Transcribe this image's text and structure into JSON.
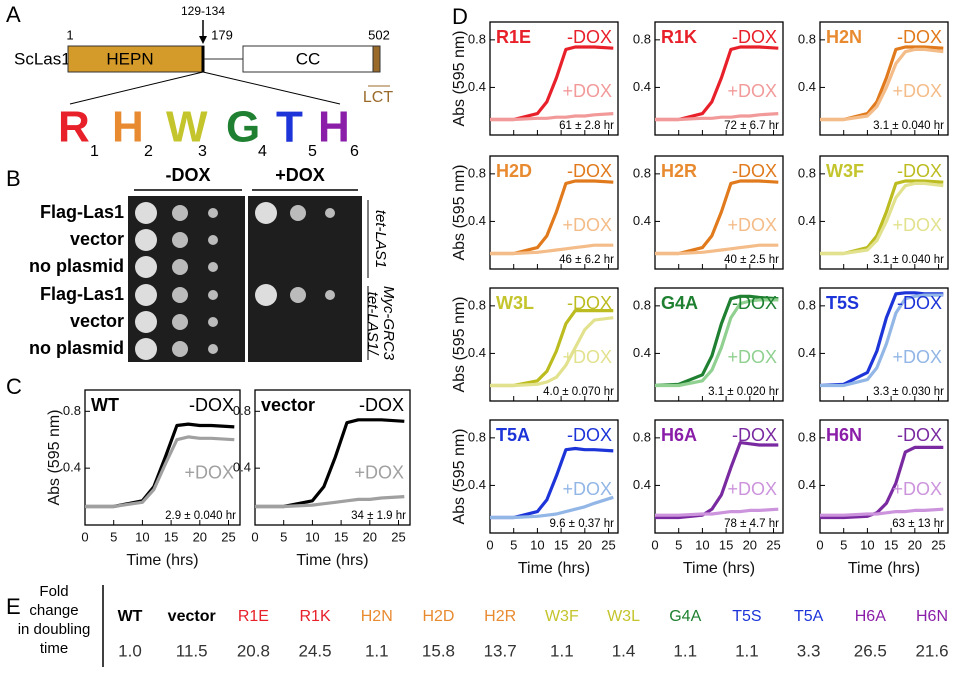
{
  "panel_a": {
    "label": "A",
    "protein": "ScLas1",
    "domains": [
      "HEPN",
      "CC"
    ],
    "motif_range": "129-134",
    "positions": [
      "1",
      "179",
      "502"
    ],
    "lct": "LCT",
    "motif": [
      {
        "letter": "R",
        "index": "1",
        "color": "#e8202a"
      },
      {
        "letter": "H",
        "index": "2",
        "color": "#e88a30"
      },
      {
        "letter": "W",
        "index": "3",
        "color": "#c4c42c"
      },
      {
        "letter": "G",
        "index": "4",
        "color": "#1e8030"
      },
      {
        "letter": "T",
        "index": "5",
        "color": "#1c34d8"
      },
      {
        "letter": "H",
        "index": "6",
        "color": "#8a1ea8"
      }
    ]
  },
  "panel_b": {
    "label": "B",
    "conditions": [
      "-DOX",
      "+DOX"
    ],
    "rows": [
      "Flag-Las1",
      "vector",
      "no plasmid",
      "Flag-Las1",
      "vector",
      "no plasmid"
    ],
    "strains": [
      [
        "tet-LAS1"
      ],
      [
        "tet-LAS1/",
        "Myc-GRC3"
      ]
    ]
  },
  "panel_c": {
    "label": "C",
    "x_label": "Time (hrs)",
    "y_label": "Abs (595 nm)",
    "x": [
      0,
      5,
      10,
      12,
      14,
      16,
      18,
      20,
      22,
      26
    ],
    "xlim": [
      0,
      27
    ],
    "xticks": [
      0,
      5,
      10,
      15,
      20,
      25
    ],
    "ylim": [
      0,
      0.95
    ],
    "yticks": [
      0.4,
      0.8
    ],
    "charts": [
      {
        "name": "WT",
        "color": "#000000",
        "annotation": "2.9 ± 0.040 hr",
        "series": [
          {
            "name": "-DOX",
            "color": "#000000",
            "values": [
              0.13,
              0.13,
              0.17,
              0.27,
              0.48,
              0.7,
              0.71,
              0.7,
              0.7,
              0.69
            ]
          },
          {
            "name": "+DOX",
            "color": "#a0a0a0",
            "values": [
              0.13,
              0.13,
              0.16,
              0.25,
              0.43,
              0.6,
              0.62,
              0.61,
              0.61,
              0.6
            ]
          }
        ]
      },
      {
        "name": "vector",
        "color": "#000000",
        "annotation": "34 ± 1.9 hr",
        "series": [
          {
            "name": "-DOX",
            "color": "#000000",
            "values": [
              0.13,
              0.13,
              0.17,
              0.27,
              0.48,
              0.72,
              0.74,
              0.74,
              0.74,
              0.73
            ]
          },
          {
            "name": "+DOX",
            "color": "#a0a0a0",
            "values": [
              0.13,
              0.13,
              0.14,
              0.15,
              0.16,
              0.17,
              0.18,
              0.18,
              0.19,
              0.2
            ]
          }
        ]
      }
    ]
  },
  "panel_d": {
    "label": "D",
    "x_label": "Time (hrs)",
    "y_label": "Abs (595 nm)",
    "x": [
      0,
      5,
      10,
      12,
      14,
      16,
      18,
      20,
      22,
      26
    ],
    "xlim": [
      0,
      27
    ],
    "xticks": [
      0,
      5,
      10,
      15,
      20,
      25
    ],
    "ylim": [
      0,
      0.95
    ],
    "yticks": [
      0.4,
      0.8
    ],
    "charts": [
      {
        "name": "R1E",
        "color": "#e8202a",
        "annotation": "61 ± 2.8 hr",
        "series": [
          {
            "name": "-DOX",
            "color": "#e8202a",
            "values": [
              0.13,
              0.13,
              0.18,
              0.28,
              0.48,
              0.72,
              0.74,
              0.74,
              0.74,
              0.73
            ]
          },
          {
            "name": "+DOX",
            "color": "#f29a9a",
            "values": [
              0.13,
              0.13,
              0.14,
              0.14,
              0.15,
              0.15,
              0.16,
              0.16,
              0.17,
              0.18
            ]
          }
        ]
      },
      {
        "name": "R1K",
        "color": "#e8202a",
        "annotation": "72 ± 6.7 hr",
        "series": [
          {
            "name": "-DOX",
            "color": "#e8202a",
            "values": [
              0.13,
              0.13,
              0.18,
              0.28,
              0.48,
              0.72,
              0.74,
              0.74,
              0.74,
              0.73
            ]
          },
          {
            "name": "+DOX",
            "color": "#f29a9a",
            "values": [
              0.13,
              0.13,
              0.14,
              0.14,
              0.15,
              0.15,
              0.16,
              0.16,
              0.17,
              0.18
            ]
          }
        ]
      },
      {
        "name": "H2N",
        "color": "#e88a30",
        "annotation": "3.1 ± 0.040 hr",
        "series": [
          {
            "name": "-DOX",
            "color": "#e07a1c",
            "values": [
              0.13,
              0.13,
              0.18,
              0.28,
              0.48,
              0.72,
              0.74,
              0.74,
              0.74,
              0.73
            ]
          },
          {
            "name": "+DOX",
            "color": "#f4bc88",
            "values": [
              0.13,
              0.13,
              0.16,
              0.24,
              0.4,
              0.6,
              0.7,
              0.72,
              0.72,
              0.7
            ]
          }
        ]
      },
      {
        "name": "H2D",
        "color": "#e88a30",
        "annotation": "46 ± 6.2 hr",
        "series": [
          {
            "name": "-DOX",
            "color": "#e07a1c",
            "values": [
              0.13,
              0.13,
              0.18,
              0.28,
              0.48,
              0.72,
              0.74,
              0.74,
              0.74,
              0.73
            ]
          },
          {
            "name": "+DOX",
            "color": "#f4bc88",
            "values": [
              0.13,
              0.13,
              0.14,
              0.15,
              0.16,
              0.17,
              0.18,
              0.19,
              0.2,
              0.2
            ]
          }
        ]
      },
      {
        "name": "H2R",
        "color": "#e88a30",
        "annotation": "40 ± 2.5 hr",
        "series": [
          {
            "name": "-DOX",
            "color": "#e07a1c",
            "values": [
              0.13,
              0.13,
              0.18,
              0.28,
              0.48,
              0.72,
              0.74,
              0.74,
              0.74,
              0.73
            ]
          },
          {
            "name": "+DOX",
            "color": "#f4bc88",
            "values": [
              0.13,
              0.13,
              0.14,
              0.15,
              0.16,
              0.17,
              0.18,
              0.19,
              0.2,
              0.2
            ]
          }
        ]
      },
      {
        "name": "W3F",
        "color": "#c4c42c",
        "annotation": "3.1 ± 0.040 hr",
        "series": [
          {
            "name": "-DOX",
            "color": "#bcbc20",
            "values": [
              0.13,
              0.13,
              0.18,
              0.28,
              0.48,
              0.72,
              0.74,
              0.74,
              0.74,
              0.73
            ]
          },
          {
            "name": "+DOX",
            "color": "#e2e28e",
            "values": [
              0.13,
              0.13,
              0.16,
              0.24,
              0.4,
              0.6,
              0.7,
              0.72,
              0.72,
              0.7
            ]
          }
        ]
      },
      {
        "name": "W3L",
        "color": "#c4c42c",
        "annotation": "4.0 ± 0.070 hr",
        "series": [
          {
            "name": "-DOX",
            "color": "#bcbc20",
            "values": [
              0.13,
              0.13,
              0.17,
              0.25,
              0.42,
              0.65,
              0.76,
              0.76,
              0.76,
              0.76
            ]
          },
          {
            "name": "+DOX",
            "color": "#e2e28e",
            "values": [
              0.13,
              0.13,
              0.14,
              0.16,
              0.2,
              0.3,
              0.45,
              0.6,
              0.68,
              0.7
            ]
          }
        ]
      },
      {
        "name": "G4A",
        "color": "#1e8030",
        "annotation": "3.1 ± 0.020 hr",
        "series": [
          {
            "name": "-DOX",
            "color": "#1e8030",
            "values": [
              0.13,
              0.14,
              0.22,
              0.38,
              0.65,
              0.86,
              0.88,
              0.88,
              0.87,
              0.86
            ]
          },
          {
            "name": "+DOX",
            "color": "#90d090",
            "values": [
              0.13,
              0.13,
              0.17,
              0.26,
              0.45,
              0.7,
              0.82,
              0.84,
              0.85,
              0.85
            ]
          }
        ]
      },
      {
        "name": "T5S",
        "color": "#1c34d8",
        "annotation": "3.3 ± 0.030 hr",
        "series": [
          {
            "name": "-DOX",
            "color": "#1c34d8",
            "values": [
              0.13,
              0.14,
              0.24,
              0.42,
              0.7,
              0.9,
              0.91,
              0.91,
              0.9,
              0.9
            ]
          },
          {
            "name": "+DOX",
            "color": "#92b6e6",
            "values": [
              0.13,
              0.13,
              0.18,
              0.28,
              0.48,
              0.74,
              0.86,
              0.88,
              0.89,
              0.89
            ]
          }
        ]
      },
      {
        "name": "T5A",
        "color": "#1c34d8",
        "annotation": "9.6 ± 0.37 hr",
        "series": [
          {
            "name": "-DOX",
            "color": "#1c34d8",
            "values": [
              0.13,
              0.13,
              0.18,
              0.28,
              0.48,
              0.7,
              0.71,
              0.7,
              0.7,
              0.69
            ]
          },
          {
            "name": "+DOX",
            "color": "#92b6e6",
            "values": [
              0.13,
              0.13,
              0.14,
              0.15,
              0.16,
              0.18,
              0.2,
              0.22,
              0.25,
              0.3
            ]
          }
        ]
      },
      {
        "name": "H6A",
        "color": "#8a1ea8",
        "annotation": "78 ± 4.7 hr",
        "series": [
          {
            "name": "-DOX",
            "color": "#7a2aa0",
            "values": [
              0.13,
              0.13,
              0.15,
              0.2,
              0.32,
              0.55,
              0.76,
              0.75,
              0.74,
              0.74
            ]
          },
          {
            "name": "+DOX",
            "color": "#cc94dc",
            "values": [
              0.15,
              0.15,
              0.16,
              0.16,
              0.17,
              0.18,
              0.18,
              0.19,
              0.19,
              0.2
            ]
          }
        ]
      },
      {
        "name": "H6N",
        "color": "#8a1ea8",
        "annotation": "63 ± 13 hr",
        "series": [
          {
            "name": "-DOX",
            "color": "#7a2aa0",
            "values": [
              0.13,
              0.13,
              0.14,
              0.17,
              0.25,
              0.42,
              0.68,
              0.72,
              0.72,
              0.72
            ]
          },
          {
            "name": "+DOX",
            "color": "#cc94dc",
            "values": [
              0.15,
              0.15,
              0.16,
              0.16,
              0.17,
              0.18,
              0.18,
              0.19,
              0.19,
              0.2
            ]
          }
        ]
      }
    ]
  },
  "panel_e": {
    "label": "E",
    "row_header": [
      "Fold",
      "change",
      "in doubling",
      "time"
    ],
    "columns": [
      {
        "name": "WT",
        "color": "#000000",
        "value": "1.0"
      },
      {
        "name": "vector",
        "color": "#000000",
        "value": "11.5"
      },
      {
        "name": "R1E",
        "color": "#e8202a",
        "value": "20.8"
      },
      {
        "name": "R1K",
        "color": "#e8202a",
        "value": "24.5"
      },
      {
        "name": "H2N",
        "color": "#e88a30",
        "value": "1.1"
      },
      {
        "name": "H2D",
        "color": "#e88a30",
        "value": "15.8"
      },
      {
        "name": "H2R",
        "color": "#e88a30",
        "value": "13.7"
      },
      {
        "name": "W3F",
        "color": "#c4c42c",
        "value": "1.1"
      },
      {
        "name": "W3L",
        "color": "#c4c42c",
        "value": "1.4"
      },
      {
        "name": "G4A",
        "color": "#1e8030",
        "value": "1.1"
      },
      {
        "name": "T5S",
        "color": "#1c34d8",
        "value": "1.1"
      },
      {
        "name": "T5A",
        "color": "#1c34d8",
        "value": "3.3"
      },
      {
        "name": "H6A",
        "color": "#8a1ea8",
        "value": "26.5"
      },
      {
        "name": "H6N",
        "color": "#8a1ea8",
        "value": "21.6"
      }
    ]
  }
}
